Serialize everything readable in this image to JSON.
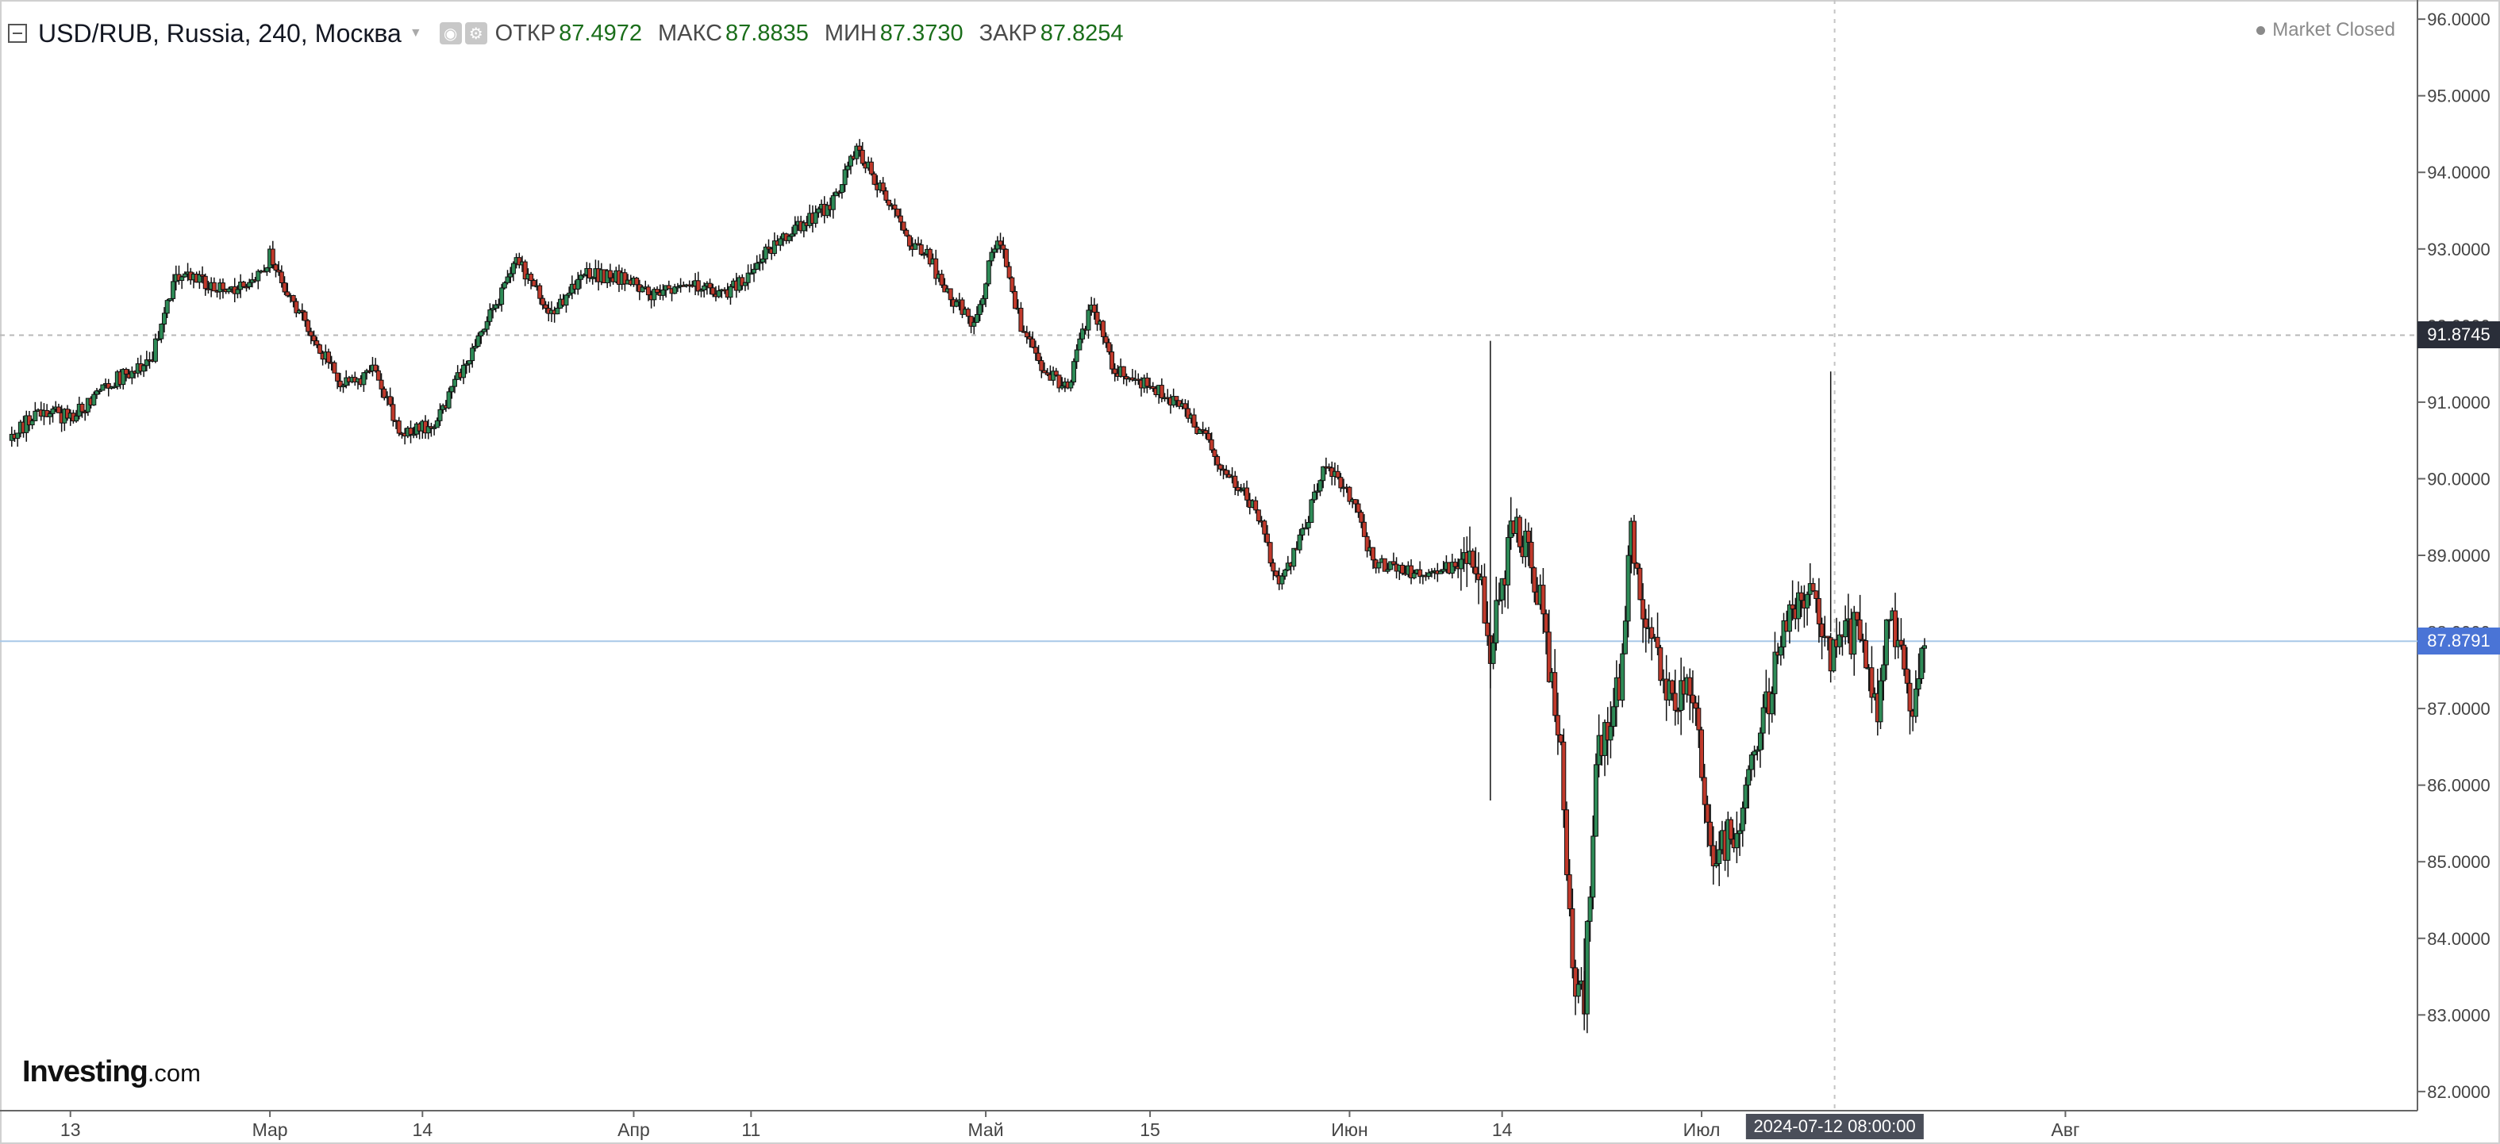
{
  "header": {
    "symbol_title": "USD/RUB, Russia, 240, Москва",
    "ohlc": [
      {
        "label": "ОТКР",
        "value": "87.4972"
      },
      {
        "label": "МАКС",
        "value": "87.8835"
      },
      {
        "label": "МИН",
        "value": "87.3730"
      },
      {
        "label": "ЗАКР",
        "value": "87.8254"
      }
    ],
    "market_status": "Market Closed"
  },
  "chart_data": {
    "type": "candlestick",
    "symbol": "USD/RUB",
    "interval": "240",
    "timezone": "Москва",
    "y_axis": {
      "ticks": [
        "96.0000",
        "95.0000",
        "94.0000",
        "93.0000",
        "92.0000",
        "91.0000",
        "90.0000",
        "89.0000",
        "88.0000",
        "87.0000",
        "86.0000",
        "85.0000",
        "84.0000",
        "83.0000",
        "82.0000"
      ],
      "range": [
        81.75,
        96.25
      ],
      "position": "right"
    },
    "x_axis": {
      "ticks": [
        "13",
        "Мар",
        "14",
        "Апр",
        "11",
        "Май",
        "15",
        "Июн",
        "14",
        "Июл",
        "Авг"
      ],
      "range": [
        "2024-02-07",
        "2024-08-31"
      ]
    },
    "previous_close": {
      "value": "91.8745"
    },
    "last_price": {
      "value": "87.8791"
    },
    "crosshair": {
      "label": "2024-07-12 08:00:00"
    },
    "grid": false,
    "path": [
      [
        "2024-02-08",
        90.5
      ],
      [
        "2024-02-10",
        90.9
      ],
      [
        "2024-02-13",
        90.8
      ],
      [
        "2024-02-16",
        91.2
      ],
      [
        "2024-02-20",
        91.6
      ],
      [
        "2024-02-22",
        92.7
      ],
      [
        "2024-02-25",
        92.5
      ],
      [
        "2024-02-28",
        92.5
      ],
      [
        "2024-03-01",
        92.9
      ],
      [
        "2024-03-03",
        92.3
      ],
      [
        "2024-03-05",
        91.8
      ],
      [
        "2024-03-07",
        91.2
      ],
      [
        "2024-03-10",
        91.4
      ],
      [
        "2024-03-12",
        90.6
      ],
      [
        "2024-03-15",
        90.7
      ],
      [
        "2024-03-18",
        91.6
      ],
      [
        "2024-03-20",
        92.2
      ],
      [
        "2024-03-22",
        92.9
      ],
      [
        "2024-03-25",
        92.1
      ],
      [
        "2024-03-28",
        92.7
      ],
      [
        "2024-03-31",
        92.6
      ],
      [
        "2024-04-03",
        92.4
      ],
      [
        "2024-04-06",
        92.5
      ],
      [
        "2024-04-09",
        92.4
      ],
      [
        "2024-04-12",
        92.9
      ],
      [
        "2024-04-15",
        93.3
      ],
      [
        "2024-04-18",
        93.6
      ],
      [
        "2024-04-20",
        94.3
      ],
      [
        "2024-04-22",
        93.8
      ],
      [
        "2024-04-24",
        93.2
      ],
      [
        "2024-04-26",
        92.9
      ],
      [
        "2024-04-28",
        92.4
      ],
      [
        "2024-04-30",
        92.0
      ],
      [
        "2024-05-02",
        93.2
      ],
      [
        "2024-05-04",
        92.0
      ],
      [
        "2024-05-06",
        91.4
      ],
      [
        "2024-05-08",
        91.2
      ],
      [
        "2024-05-10",
        92.3
      ],
      [
        "2024-05-12",
        91.4
      ],
      [
        "2024-05-15",
        91.2
      ],
      [
        "2024-05-18",
        90.9
      ],
      [
        "2024-05-21",
        90.2
      ],
      [
        "2024-05-24",
        89.6
      ],
      [
        "2024-05-26",
        88.6
      ],
      [
        "2024-05-28",
        89.3
      ],
      [
        "2024-05-30",
        90.2
      ],
      [
        "2024-06-01",
        89.8
      ],
      [
        "2024-06-03",
        88.9
      ],
      [
        "2024-06-06",
        88.8
      ],
      [
        "2024-06-09",
        88.8
      ],
      [
        "2024-06-12",
        88.9
      ],
      [
        "2024-06-13",
        87.8
      ],
      [
        "2024-06-15",
        89.5
      ],
      [
        "2024-06-17",
        88.6
      ],
      [
        "2024-06-19",
        86.6
      ],
      [
        "2024-06-20",
        83.4
      ],
      [
        "2024-06-21",
        83.2
      ],
      [
        "2024-06-22",
        86.4
      ],
      [
        "2024-06-24",
        87.3
      ],
      [
        "2024-06-25",
        89.4
      ],
      [
        "2024-06-26",
        88.2
      ],
      [
        "2024-06-28",
        87.2
      ],
      [
        "2024-06-30",
        87.3
      ],
      [
        "2024-07-02",
        85.1
      ],
      [
        "2024-07-04",
        85.4
      ],
      [
        "2024-07-06",
        86.6
      ],
      [
        "2024-07-08",
        88.2
      ],
      [
        "2024-07-10",
        88.5
      ],
      [
        "2024-07-12",
        87.7
      ],
      [
        "2024-07-14",
        88.0
      ],
      [
        "2024-07-16",
        87.1
      ],
      [
        "2024-07-17",
        88.3
      ],
      [
        "2024-07-18",
        87.6
      ],
      [
        "2024-07-19",
        87.0
      ],
      [
        "2024-07-20",
        87.8
      ]
    ]
  }
}
